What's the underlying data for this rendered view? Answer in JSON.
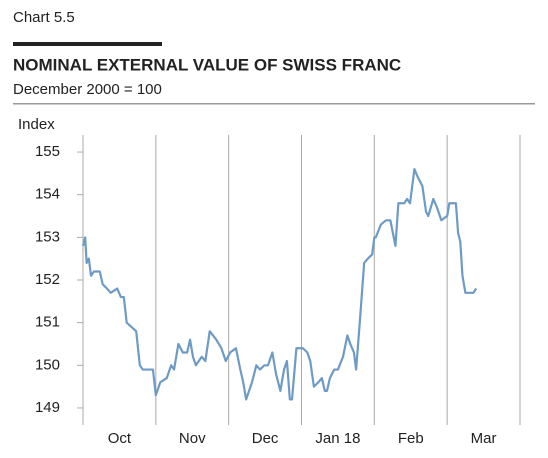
{
  "chart_data": {
    "type": "line",
    "label": "Chart 5.5",
    "title": "NOMINAL EXTERNAL VALUE OF SWISS FRANC",
    "subtitle": "December 2000 = 100",
    "ylabel": "Index",
    "categories": [
      "Oct",
      "Nov",
      "Dec",
      "Jan 18",
      "Feb",
      "Mar"
    ],
    "xlim": [
      0,
      6
    ],
    "ylim": [
      148.6,
      155.4
    ],
    "yticks": [
      149,
      150,
      151,
      152,
      153,
      154,
      155
    ],
    "series": [
      {
        "color": "#6e9bc5",
        "x": [
          0,
          0.03,
          0.05,
          0.08,
          0.11,
          0.15,
          0.23,
          0.27,
          0.33,
          0.38,
          0.47,
          0.52,
          0.56,
          0.6,
          0.73,
          0.78,
          0.82,
          0.96,
          1.0,
          1.06,
          1.15,
          1.21,
          1.25,
          1.31,
          1.37,
          1.43,
          1.47,
          1.51,
          1.55,
          1.63,
          1.68,
          1.74,
          1.83,
          1.9,
          1.96,
          2.02,
          2.1,
          2.16,
          2.2,
          2.24,
          2.32,
          2.38,
          2.43,
          2.49,
          2.54,
          2.6,
          2.65,
          2.71,
          2.76,
          2.8,
          2.84,
          2.87,
          2.93,
          3.02,
          3.08,
          3.12,
          3.17,
          3.23,
          3.28,
          3.32,
          3.35,
          3.39,
          3.45,
          3.5,
          3.57,
          3.63,
          3.67,
          3.72,
          3.75,
          3.8,
          3.86,
          3.91,
          3.97,
          4.0,
          4.02,
          4.09,
          4.16,
          4.22,
          4.29,
          4.33,
          4.41,
          4.45,
          4.49,
          4.55,
          4.6,
          4.66,
          4.71,
          4.74,
          4.81,
          4.86,
          4.92,
          5.0,
          5.03,
          5.12,
          5.15,
          5.18,
          5.21,
          5.25,
          5.33,
          5.36,
          5.4
        ],
        "values": [
          152.8,
          153.0,
          152.4,
          152.5,
          152.1,
          152.2,
          152.2,
          151.9,
          151.8,
          151.7,
          151.8,
          151.6,
          151.6,
          151.0,
          150.8,
          150.0,
          149.9,
          149.9,
          149.3,
          149.6,
          149.7,
          150.0,
          149.9,
          150.5,
          150.3,
          150.3,
          150.6,
          150.2,
          150.0,
          150.2,
          150.1,
          150.8,
          150.6,
          150.4,
          150.1,
          150.3,
          150.4,
          149.9,
          149.6,
          149.2,
          149.6,
          150.0,
          149.9,
          150.0,
          150.0,
          150.3,
          149.8,
          149.4,
          149.9,
          150.1,
          149.2,
          149.2,
          150.4,
          150.4,
          150.3,
          150.1,
          149.5,
          149.6,
          149.7,
          149.4,
          149.4,
          149.7,
          149.9,
          149.9,
          150.2,
          150.7,
          150.5,
          150.3,
          149.9,
          151.0,
          152.4,
          152.5,
          152.6,
          153.0,
          153.0,
          153.3,
          153.4,
          153.4,
          152.8,
          153.8,
          153.8,
          153.9,
          153.8,
          154.6,
          154.4,
          154.2,
          153.6,
          153.5,
          153.9,
          153.7,
          153.4,
          153.5,
          153.8,
          153.8,
          153.1,
          152.9,
          152.1,
          151.7,
          151.7,
          151.7,
          151.8
        ]
      }
    ]
  }
}
